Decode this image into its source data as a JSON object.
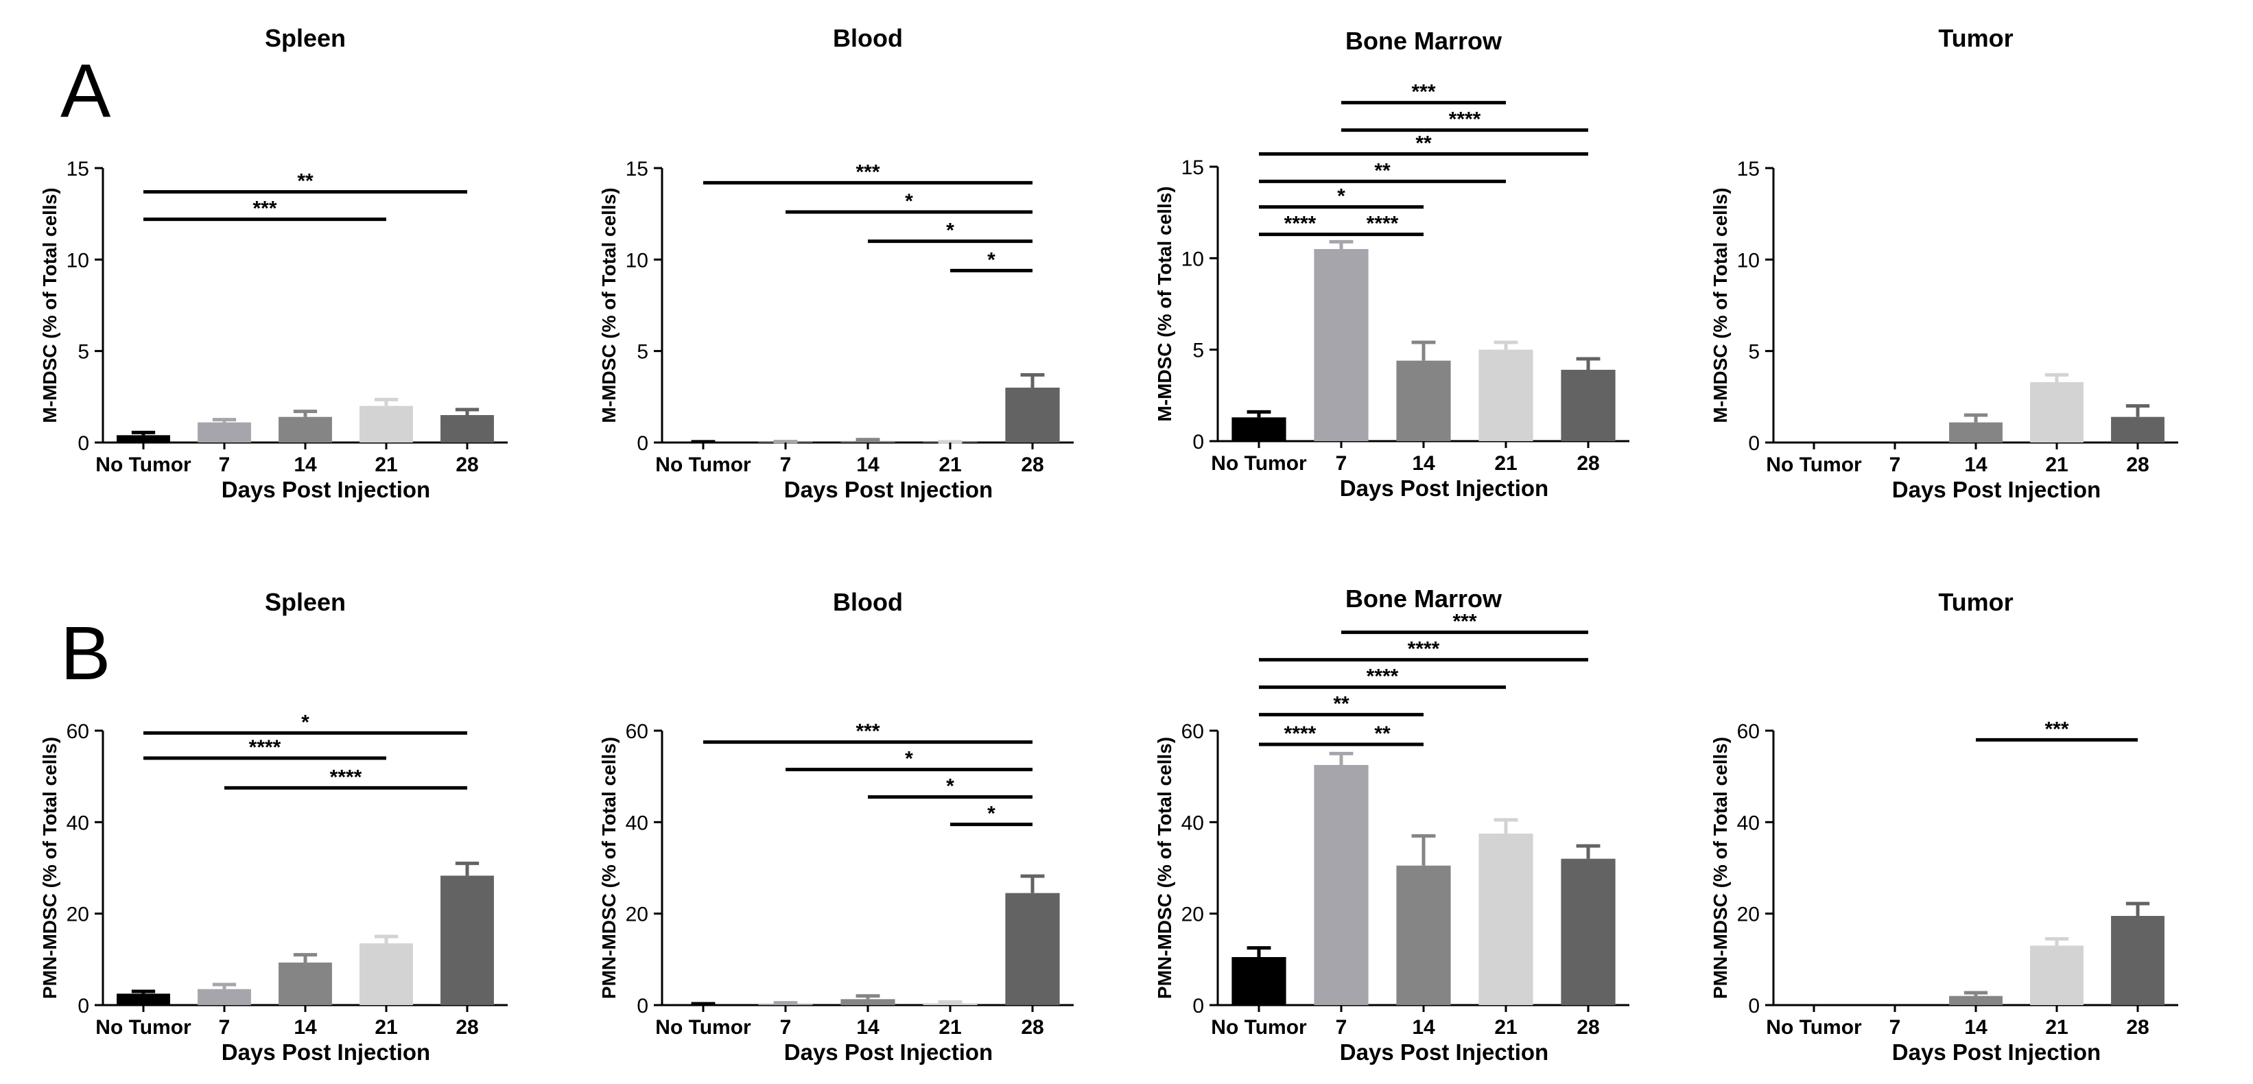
{
  "panel_labels": [
    "A",
    "B"
  ],
  "colors": {
    "No Tumor": "#000000",
    "7": "#a6a5ab",
    "14": "#858585",
    "21": "#d3d3d3",
    "28": "#636363",
    "axis": "#000000",
    "sig_line": "#000000"
  },
  "chart_data": [
    {
      "type": "bar",
      "panel": "A",
      "title": "Spleen",
      "ylabel": "M-MDSC (% of Total cells)",
      "xlabel": "Days Post Injection",
      "categories": [
        "No Tumor",
        "7",
        "14",
        "21",
        "28"
      ],
      "values": [
        0.4,
        1.1,
        1.4,
        2.0,
        1.5
      ],
      "errors": [
        0.15,
        0.15,
        0.3,
        0.35,
        0.3
      ],
      "ylim": [
        0,
        15
      ],
      "yticks": [
        0,
        5,
        10,
        15
      ],
      "significance": [
        {
          "from": 0,
          "to": 4,
          "label": "**",
          "y": 13.7
        },
        {
          "from": 0,
          "to": 3,
          "label": "***",
          "y": 12.2
        }
      ]
    },
    {
      "type": "bar",
      "panel": "A",
      "title": "Blood",
      "ylabel": "M-MDSC (% of Total cells)",
      "xlabel": "Days Post Injection",
      "categories": [
        "No Tumor",
        "7",
        "14",
        "21",
        "28"
      ],
      "values": [
        0.02,
        0.03,
        0.08,
        0.02,
        3.0
      ],
      "errors": [
        0.02,
        0.02,
        0.08,
        0.02,
        0.7
      ],
      "ylim": [
        0,
        15
      ],
      "yticks": [
        0,
        5,
        10,
        15
      ],
      "significance": [
        {
          "from": 0,
          "to": 4,
          "label": "***",
          "y": 14.2
        },
        {
          "from": 1,
          "to": 4,
          "label": "*",
          "y": 12.6
        },
        {
          "from": 2,
          "to": 4,
          "label": "*",
          "y": 11.0
        },
        {
          "from": 3,
          "to": 4,
          "label": "*",
          "y": 9.4
        }
      ]
    },
    {
      "type": "bar",
      "panel": "A",
      "title": "Bone Marrow",
      "ylabel": "M-MDSC (% of Total cells)",
      "xlabel": "Days Post Injection",
      "categories": [
        "No Tumor",
        "7",
        "14",
        "21",
        "28"
      ],
      "values": [
        1.3,
        10.5,
        4.4,
        5.0,
        3.9
      ],
      "errors": [
        0.3,
        0.4,
        1.0,
        0.4,
        0.6
      ],
      "ylim": [
        0,
        15
      ],
      "yticks": [
        0,
        5,
        10,
        15
      ],
      "significance": [
        {
          "from": 1,
          "to": 3,
          "label": "***",
          "y": 18.5
        },
        {
          "from": 1,
          "to": 4,
          "label": "****",
          "y": 17.0
        },
        {
          "from": 0,
          "to": 4,
          "label": "**",
          "y": 15.7
        },
        {
          "from": 0,
          "to": 3,
          "label": "**",
          "y": 14.2
        },
        {
          "from": 0,
          "to": 2,
          "label": "*",
          "y": 12.8
        },
        {
          "from": 0,
          "to": 1,
          "label": "****",
          "y": 11.3
        },
        {
          "from": 1,
          "to": 2,
          "label": "****",
          "y": 11.3
        }
      ]
    },
    {
      "type": "bar",
      "panel": "A",
      "title": "Tumor",
      "ylabel": "M-MDSC (% of Total cells)",
      "xlabel": "Days Post Injection",
      "categories": [
        "No Tumor",
        "7",
        "14",
        "21",
        "28"
      ],
      "values": [
        0,
        0,
        1.1,
        3.3,
        1.4
      ],
      "errors": [
        0,
        0,
        0.4,
        0.4,
        0.6
      ],
      "ylim": [
        0,
        15
      ],
      "yticks": [
        0,
        5,
        10,
        15
      ],
      "significance": []
    },
    {
      "type": "bar",
      "panel": "B",
      "title": "Spleen",
      "ylabel": "PMN-MDSC (% of Total cells)",
      "xlabel": "Days Post Injection",
      "categories": [
        "No Tumor",
        "7",
        "14",
        "21",
        "28"
      ],
      "values": [
        2.5,
        3.5,
        9.3,
        13.5,
        28.3
      ],
      "errors": [
        0.5,
        1.0,
        1.7,
        1.5,
        2.7
      ],
      "ylim": [
        0,
        60
      ],
      "yticks": [
        0,
        20,
        40,
        60
      ],
      "significance": [
        {
          "from": 0,
          "to": 4,
          "label": "*",
          "y": 59.5
        },
        {
          "from": 0,
          "to": 3,
          "label": "****",
          "y": 54.0
        },
        {
          "from": 1,
          "to": 4,
          "label": "****",
          "y": 47.5
        }
      ]
    },
    {
      "type": "bar",
      "panel": "B",
      "title": "Blood",
      "ylabel": "PMN-MDSC (% of Total cells)",
      "xlabel": "Days Post Injection",
      "categories": [
        "No Tumor",
        "7",
        "14",
        "21",
        "28"
      ],
      "values": [
        0.2,
        0.3,
        1.3,
        0.4,
        24.5
      ],
      "errors": [
        0.1,
        0.2,
        0.7,
        0.3,
        3.7
      ],
      "ylim": [
        0,
        60
      ],
      "yticks": [
        0,
        20,
        40,
        60
      ],
      "significance": [
        {
          "from": 0,
          "to": 4,
          "label": "***",
          "y": 57.5
        },
        {
          "from": 1,
          "to": 4,
          "label": "*",
          "y": 51.5
        },
        {
          "from": 2,
          "to": 4,
          "label": "*",
          "y": 45.5
        },
        {
          "from": 3,
          "to": 4,
          "label": "*",
          "y": 39.5
        }
      ]
    },
    {
      "type": "bar",
      "panel": "B",
      "title": "Bone Marrow",
      "ylabel": "PMN-MDSC (% of Total cells)",
      "xlabel": "Days Post Injection",
      "categories": [
        "No Tumor",
        "7",
        "14",
        "21",
        "28"
      ],
      "values": [
        10.5,
        52.5,
        30.5,
        37.5,
        32.0
      ],
      "errors": [
        2.0,
        2.5,
        6.5,
        3.0,
        2.8
      ],
      "ylim": [
        0,
        60
      ],
      "yticks": [
        0,
        20,
        40,
        60
      ],
      "significance": [
        {
          "from": 1,
          "to": 4,
          "label": "***",
          "y": 81.5
        },
        {
          "from": 0,
          "to": 4,
          "label": "****",
          "y": 75.5
        },
        {
          "from": 0,
          "to": 3,
          "label": "****",
          "y": 69.5
        },
        {
          "from": 0,
          "to": 2,
          "label": "**",
          "y": 63.5
        },
        {
          "from": 0,
          "to": 1,
          "label": "****",
          "y": 57.0
        },
        {
          "from": 1,
          "to": 2,
          "label": "**",
          "y": 57.0
        }
      ]
    },
    {
      "type": "bar",
      "panel": "B",
      "title": "Tumor",
      "ylabel": "PMN-MDSC (% of Total cells)",
      "xlabel": "Days Post Injection",
      "categories": [
        "No Tumor",
        "7",
        "14",
        "21",
        "28"
      ],
      "values": [
        0,
        0,
        2.0,
        13.0,
        19.5
      ],
      "errors": [
        0,
        0,
        0.7,
        1.5,
        2.7
      ],
      "ylim": [
        0,
        60
      ],
      "yticks": [
        0,
        20,
        40,
        60
      ],
      "significance": [
        {
          "from": 2,
          "to": 4,
          "label": "***",
          "y": 58.0
        }
      ]
    }
  ]
}
